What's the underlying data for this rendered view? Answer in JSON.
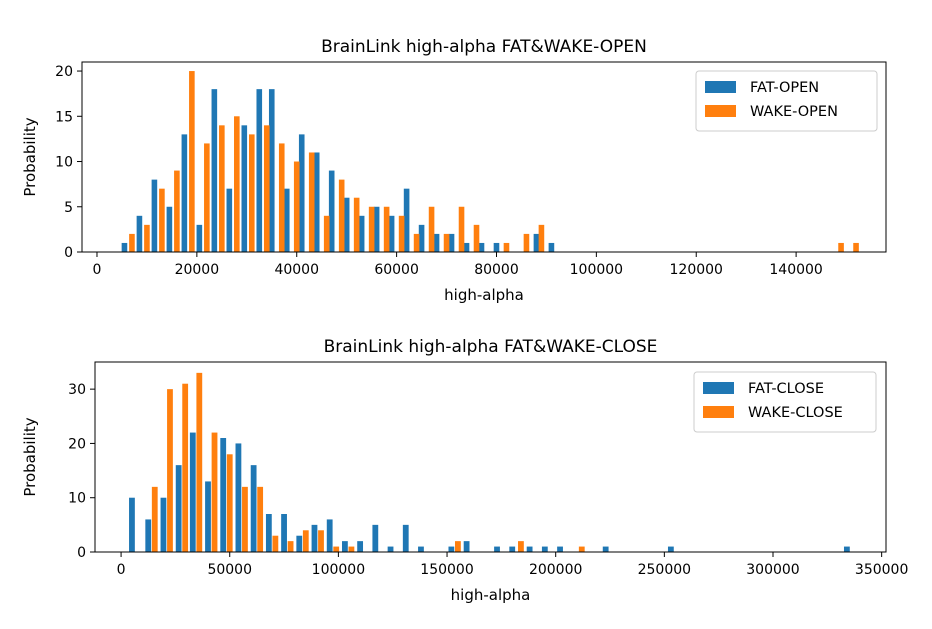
{
  "chart_data": [
    {
      "type": "bar",
      "title": "BrainLink high-alpha FAT&WAKE-OPEN",
      "xlabel": "high-alpha",
      "ylabel": "Probability",
      "xlim": [
        -3000,
        158000
      ],
      "ylim": [
        0,
        21
      ],
      "xticks": [
        0,
        20000,
        40000,
        60000,
        80000,
        100000,
        120000,
        140000
      ],
      "yticks": [
        0,
        5,
        10,
        15,
        20
      ],
      "legend_position": "top-right",
      "series": [
        {
          "name": "FAT-OPEN",
          "color": "#1f77b4",
          "points": [
            [
              5500,
              1
            ],
            [
              8500,
              4
            ],
            [
              11500,
              8
            ],
            [
              14500,
              5
            ],
            [
              17500,
              13
            ],
            [
              20500,
              3
            ],
            [
              23500,
              18
            ],
            [
              26500,
              7
            ],
            [
              29500,
              14
            ],
            [
              32500,
              18
            ],
            [
              35000,
              18
            ],
            [
              38000,
              7
            ],
            [
              41000,
              13
            ],
            [
              44000,
              11
            ],
            [
              47000,
              9
            ],
            [
              50000,
              6
            ],
            [
              53000,
              4
            ],
            [
              56000,
              5
            ],
            [
              59000,
              4
            ],
            [
              62000,
              7
            ],
            [
              65000,
              3
            ],
            [
              68000,
              2
            ],
            [
              71000,
              2
            ],
            [
              74000,
              1
            ],
            [
              77000,
              1
            ],
            [
              80000,
              1
            ],
            [
              88000,
              2
            ],
            [
              91000,
              1
            ]
          ]
        },
        {
          "name": "WAKE-OPEN",
          "color": "#ff7f0e",
          "points": [
            [
              7000,
              2
            ],
            [
              10000,
              3
            ],
            [
              13000,
              7
            ],
            [
              16000,
              9
            ],
            [
              19000,
              20
            ],
            [
              22000,
              12
            ],
            [
              25000,
              14
            ],
            [
              28000,
              15
            ],
            [
              31000,
              13
            ],
            [
              34000,
              14
            ],
            [
              37000,
              12
            ],
            [
              40000,
              10
            ],
            [
              43000,
              11
            ],
            [
              46000,
              4
            ],
            [
              49000,
              8
            ],
            [
              52000,
              6
            ],
            [
              55000,
              5
            ],
            [
              58000,
              5
            ],
            [
              61000,
              4
            ],
            [
              64000,
              2
            ],
            [
              67000,
              5
            ],
            [
              70000,
              2
            ],
            [
              73000,
              5
            ],
            [
              76000,
              3
            ],
            [
              82000,
              1
            ],
            [
              86000,
              2
            ],
            [
              89000,
              3
            ],
            [
              149000,
              1
            ],
            [
              152000,
              1
            ]
          ]
        }
      ]
    },
    {
      "type": "bar",
      "title": "BrainLink high-alpha FAT&WAKE-CLOSE",
      "xlabel": "high-alpha",
      "ylabel": "Probability",
      "xlim": [
        -12000,
        352000
      ],
      "ylim": [
        0,
        35
      ],
      "xticks": [
        0,
        50000,
        100000,
        150000,
        200000,
        250000,
        300000,
        350000
      ],
      "yticks": [
        0,
        10,
        20,
        30
      ],
      "legend_position": "top-right",
      "series": [
        {
          "name": "FAT-CLOSE",
          "color": "#1f77b4",
          "points": [
            [
              5000,
              10
            ],
            [
              12500,
              6
            ],
            [
              19500,
              10
            ],
            [
              26500,
              16
            ],
            [
              33000,
              22
            ],
            [
              40000,
              13
            ],
            [
              47000,
              21
            ],
            [
              54000,
              20
            ],
            [
              61000,
              16
            ],
            [
              68000,
              7
            ],
            [
              75000,
              7
            ],
            [
              82000,
              3
            ],
            [
              89000,
              5
            ],
            [
              96000,
              6
            ],
            [
              103000,
              2
            ],
            [
              110000,
              2
            ],
            [
              117000,
              5
            ],
            [
              124000,
              1
            ],
            [
              131000,
              5
            ],
            [
              138000,
              1
            ],
            [
              152000,
              1
            ],
            [
              159000,
              2
            ],
            [
              173000,
              1
            ],
            [
              180000,
              1
            ],
            [
              188000,
              1
            ],
            [
              195000,
              1
            ],
            [
              202000,
              1
            ],
            [
              223000,
              1
            ],
            [
              253000,
              1
            ],
            [
              334000,
              1
            ]
          ]
        },
        {
          "name": "WAKE-CLOSE",
          "color": "#ff7f0e",
          "points": [
            [
              15500,
              12
            ],
            [
              22500,
              30
            ],
            [
              29500,
              31
            ],
            [
              36000,
              33
            ],
            [
              43000,
              22
            ],
            [
              50000,
              18
            ],
            [
              57000,
              12
            ],
            [
              64000,
              12
            ],
            [
              71000,
              3
            ],
            [
              78000,
              2
            ],
            [
              85000,
              4
            ],
            [
              92000,
              4
            ],
            [
              99000,
              1
            ],
            [
              106000,
              1
            ],
            [
              155000,
              2
            ],
            [
              184000,
              2
            ],
            [
              212000,
              1
            ]
          ]
        }
      ]
    }
  ]
}
